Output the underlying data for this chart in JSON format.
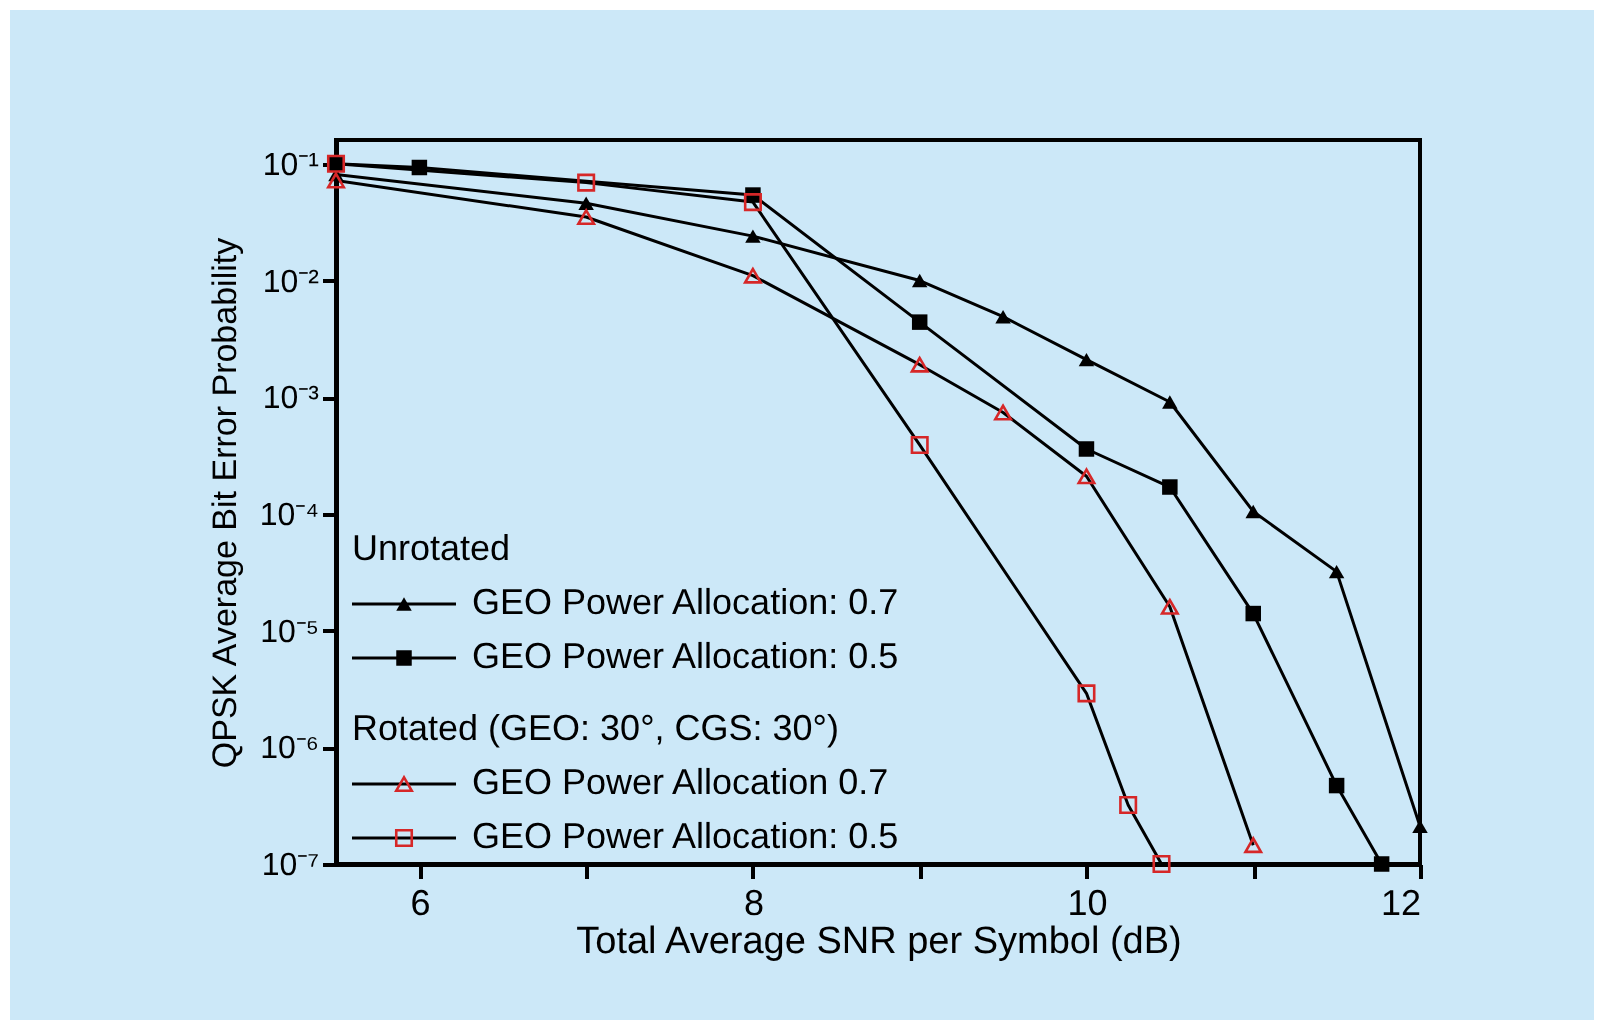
{
  "chart_data": {
    "type": "line",
    "xlabel": "Total Average SNR per Symbol (dB)",
    "ylabel": "QPSK Average Bit Error Probability",
    "log": "y",
    "xlim": [
      5.5,
      12
    ],
    "ylim": [
      1e-07,
      0.16
    ],
    "xticks": [
      6,
      {
        "value": 7,
        "label": null
      },
      8,
      {
        "value": 9,
        "label": null
      },
      10,
      {
        "value": 11,
        "label": null
      },
      12
    ],
    "yticks": [
      {
        "value": 1e-07,
        "label": "10⁻⁷"
      },
      {
        "value": 1e-06,
        "label": "10⁻⁶"
      },
      {
        "value": 1e-05,
        "label": "10⁻⁵"
      },
      {
        "value": 0.0001,
        "label": "10⁻⁴"
      },
      {
        "value": 0.001,
        "label": "10⁻³"
      },
      {
        "value": 0.01,
        "label": "10⁻²"
      },
      {
        "value": 0.1,
        "label": "10⁻¹"
      }
    ],
    "grid": false,
    "legend": "bottom left",
    "annotations": [
      "Unrotated",
      "Rotated (GEO: 30°, CGS: 30°)"
    ],
    "series": [
      {
        "name": "GEO Power Allocation: 0.7",
        "color": "#000000",
        "marker": "triangle",
        "x": [
          5.5,
          7,
          8,
          9,
          9.5,
          10,
          10.5,
          11,
          11.5,
          12
        ],
        "values": [
          0.081,
          0.046,
          0.024,
          0.01,
          0.0049,
          0.0021,
          0.00091,
          0.000105,
          3.2e-05,
          2.1e-07
        ]
      },
      {
        "name": "GEO Power Allocation: 0.5",
        "color": "#000000",
        "marker": "square",
        "x": [
          5.5,
          6,
          8,
          9,
          10,
          10.5,
          11,
          11.5,
          11.77
        ],
        "values": [
          0.1,
          0.093,
          0.054,
          0.0044,
          0.00036,
          0.00017,
          1.4e-05,
          4.7e-07,
          1e-07
        ]
      },
      {
        "name": "GEO Power Allocation 0.7",
        "color": "#d62728",
        "marker": "triangle",
        "x": [
          5.5,
          7,
          8,
          9,
          9.5,
          10,
          10.5,
          11
        ],
        "values": [
          0.072,
          0.035,
          0.011,
          0.0019,
          0.00074,
          0.00021,
          1.6e-05,
          1.45e-07
        ]
      },
      {
        "name": "GEO Power Allocation: 0.5",
        "color": "#d62728",
        "marker": "square",
        "x": [
          5.5,
          7,
          8,
          9,
          10,
          10.25,
          10.45
        ],
        "values": [
          0.1,
          0.069,
          0.047,
          0.00039,
          2.9e-06,
          3.2e-07,
          1e-07
        ]
      }
    ]
  }
}
